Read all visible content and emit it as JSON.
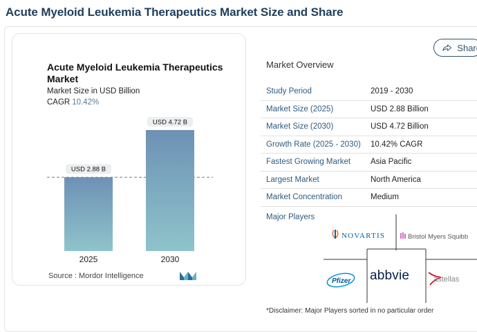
{
  "page_title": "Acute Myeloid Leukemia Therapeutics Market Size and Share",
  "share": {
    "label": "Share",
    "icon": "share-icon"
  },
  "chart_card": {
    "title": "Acute Myeloid Leukemia Therapeutics Market",
    "subtitle": "Market Size in USD Billion",
    "cagr_label": "CAGR",
    "cagr_value": "10.42%",
    "source": "Source : Mordor Intelligence",
    "logo_icon": "mordor-intelligence-logo-icon"
  },
  "chart_data": {
    "type": "bar",
    "categories": [
      "2025",
      "2030"
    ],
    "values": [
      2.88,
      4.72
    ],
    "data_labels": [
      "USD 2.88 B",
      "USD 4.72 B"
    ],
    "title": "Acute Myeloid Leukemia Therapeutics Market",
    "ylabel": "Market Size in USD Billion",
    "ylim": [
      0,
      4.72
    ],
    "grid": false,
    "reference_line": {
      "value": 2.88,
      "style": "dashed"
    },
    "bar_gradient": [
      "#6e91b5",
      "#8ec4cb"
    ]
  },
  "market_overview": {
    "title": "Market Overview",
    "rows": [
      {
        "key": "Study Period",
        "value": "2019 - 2030"
      },
      {
        "key": "Market Size (2025)",
        "value": "USD 2.88 Billion"
      },
      {
        "key": "Market Size (2030)",
        "value": "USD 4.72 Billion"
      },
      {
        "key": "Growth Rate (2025 - 2030)",
        "value": "10.42% CAGR"
      },
      {
        "key": "Fastest Growing Market",
        "value": "Asia Pacific"
      },
      {
        "key": "Largest Market",
        "value": "North America"
      },
      {
        "key": "Market Concentration",
        "value": "Medium"
      }
    ],
    "major_players_label": "Major Players",
    "players": [
      "NOVARTIS",
      "Bristol Myers Squibb",
      "Pfizer",
      "abbvie",
      "astellas"
    ],
    "disclaimer": "*Disclaimer: Major Players sorted in no particular order"
  },
  "colors": {
    "title": "#1d3e5c",
    "key_text": "#2d5b82",
    "bar_top": "#6e91b5",
    "bar_bottom": "#8ec4cb",
    "astellas_red": "#c8102e"
  }
}
